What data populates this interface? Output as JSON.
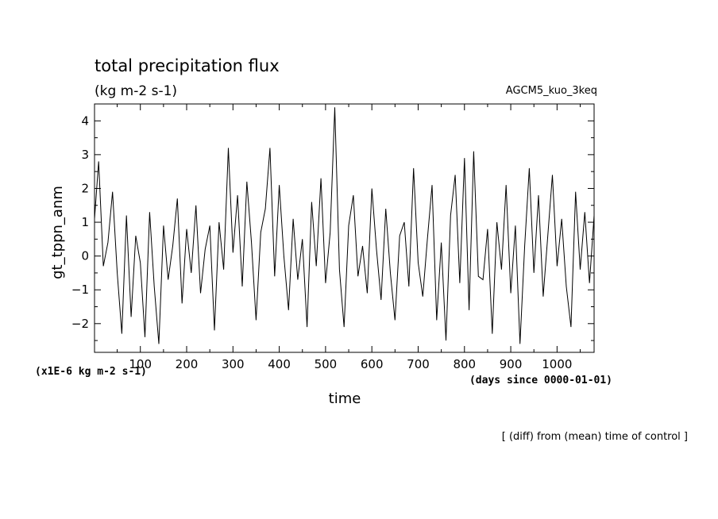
{
  "chart_data": {
    "type": "line",
    "title": "total precipitation flux",
    "subtitle": "(kg m-2 s-1)",
    "experiment": "AGCM5_kuo_3keq",
    "xlabel": "time",
    "x_units": "(days since 0000-01-01)",
    "ylabel": "gt_tppn_anm",
    "y_units": "(x1E-6 kg m-2 s-1)",
    "footnote": "[ (diff) from (mean) time of control ]",
    "xlim": [
      1,
      1080
    ],
    "ylim": [
      -2.85,
      4.5
    ],
    "x_ticks": [
      100,
      200,
      300,
      400,
      500,
      600,
      700,
      800,
      900,
      1000
    ],
    "x_tick_labels": [
      "100",
      "200",
      "300",
      "400",
      "500",
      "600",
      "700",
      "800",
      "900",
      "1000"
    ],
    "y_ticks": [
      -2,
      -1,
      0,
      1,
      2,
      3,
      4
    ],
    "y_tick_labels": [
      "−2",
      "−1",
      "0",
      "1",
      "2",
      "3",
      "4"
    ],
    "grid": false,
    "line_color": "#000000",
    "series": [
      {
        "x": [
          1,
          10,
          20,
          30,
          40,
          50,
          60,
          70,
          80,
          90,
          100,
          110,
          120,
          130,
          140,
          150,
          160,
          170,
          180,
          190,
          200,
          210,
          220,
          230,
          240,
          250,
          260,
          270,
          280,
          290,
          300,
          310,
          320,
          330,
          340,
          350,
          360,
          370,
          380,
          390,
          400,
          410,
          420,
          430,
          440,
          450,
          460,
          470,
          480,
          490,
          500,
          510,
          520,
          530,
          540,
          550,
          560,
          570,
          580,
          590,
          600,
          610,
          620,
          630,
          640,
          650,
          660,
          670,
          680,
          690,
          700,
          710,
          720,
          730,
          740,
          750,
          760,
          770,
          780,
          790,
          800,
          810,
          820,
          830,
          840,
          850,
          860,
          870,
          880,
          890,
          900,
          910,
          920,
          930,
          940,
          950,
          960,
          970,
          980,
          990,
          1000,
          1010,
          1020,
          1030,
          1040,
          1050,
          1060,
          1070,
          1080
        ],
        "y": [
          1.1,
          2.8,
          -0.3,
          0.4,
          1.9,
          -0.5,
          -2.3,
          1.2,
          -1.8,
          0.6,
          -0.2,
          -2.4,
          1.3,
          -0.9,
          -2.6,
          0.9,
          -0.7,
          0.3,
          1.7,
          -1.4,
          0.8,
          -0.5,
          1.5,
          -1.1,
          0.2,
          0.9,
          -2.2,
          1.0,
          -0.4,
          3.2,
          0.1,
          1.8,
          -0.9,
          2.2,
          0.4,
          -1.9,
          0.7,
          1.4,
          3.2,
          -0.6,
          2.1,
          0.0,
          -1.6,
          1.1,
          -0.7,
          0.5,
          -2.1,
          1.6,
          -0.3,
          2.3,
          -0.8,
          0.7,
          4.4,
          -0.4,
          -2.1,
          0.9,
          1.8,
          -0.6,
          0.3,
          -1.1,
          2.0,
          0.2,
          -1.3,
          1.4,
          -0.5,
          -1.9,
          0.6,
          1.0,
          -0.9,
          2.6,
          -0.2,
          -1.2,
          0.5,
          2.1,
          -1.9,
          0.4,
          -2.5,
          1.2,
          2.4,
          -0.8,
          2.9,
          -1.6,
          3.1,
          -0.6,
          -0.7,
          0.8,
          -2.3,
          1.0,
          -0.4,
          2.1,
          -1.1,
          0.9,
          -2.6,
          0.3,
          2.6,
          -0.5,
          1.8,
          -1.2,
          0.6,
          2.4,
          -0.3,
          1.1,
          -0.9,
          -2.1,
          1.9,
          -0.4,
          1.3,
          -0.8,
          1.2
        ]
      }
    ]
  }
}
